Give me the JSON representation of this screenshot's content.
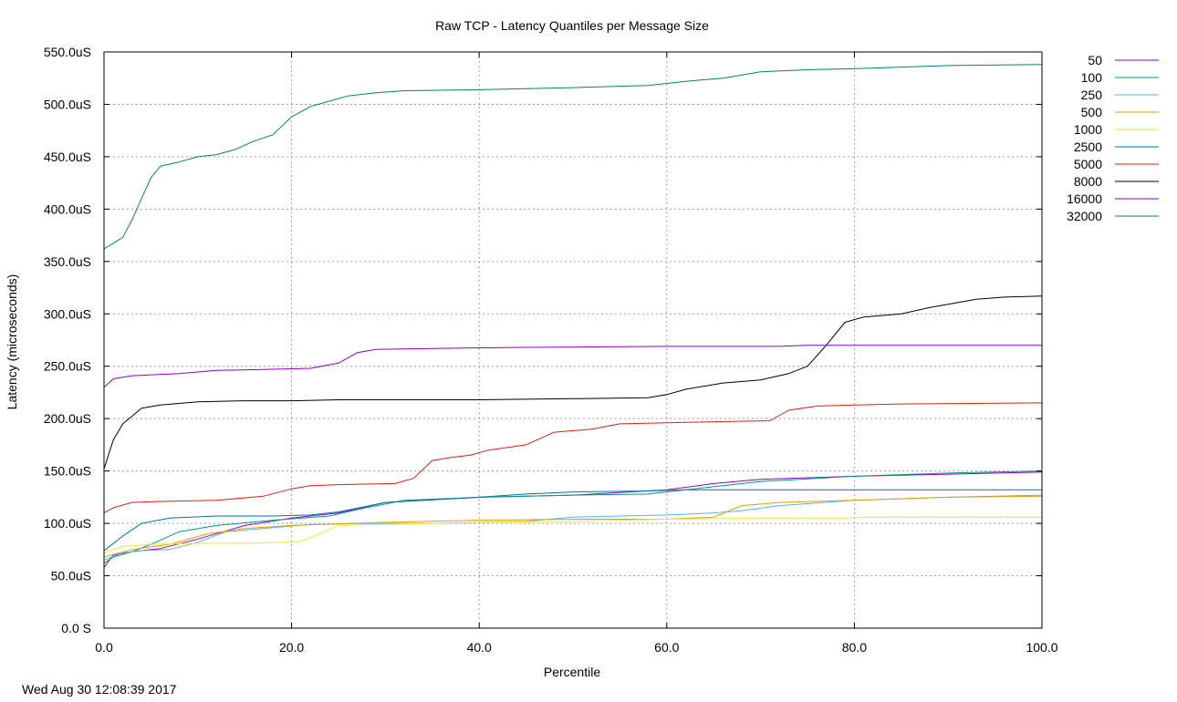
{
  "chart_data": {
    "type": "line",
    "title": "Raw TCP - Latency Quantiles per Message Size",
    "xlabel": "Percentile",
    "ylabel": "Latency (microseconds)",
    "xlim": [
      0,
      100
    ],
    "ylim": [
      0,
      550
    ],
    "x_ticks": [
      0,
      20,
      40,
      60,
      80,
      100
    ],
    "x_tick_labels": [
      "0.0",
      "20.0",
      "40.0",
      "60.0",
      "80.0",
      "100.0"
    ],
    "y_ticks": [
      0,
      50,
      100,
      150,
      200,
      250,
      300,
      350,
      400,
      450,
      500,
      550
    ],
    "y_tick_labels": [
      "0.0 S",
      "50.0uS",
      "100.0uS",
      "150.0uS",
      "200.0uS",
      "250.0uS",
      "300.0uS",
      "350.0uS",
      "400.0uS",
      "450.0uS",
      "500.0uS",
      "550.0uS"
    ],
    "grid": true,
    "legend_position": "right",
    "series": [
      {
        "name": "50",
        "color": "#9400d3",
        "points": [
          [
            0,
            58
          ],
          [
            1,
            70
          ],
          [
            3,
            73
          ],
          [
            6,
            76
          ],
          [
            10,
            85
          ],
          [
            15,
            98
          ],
          [
            20,
            105
          ],
          [
            25,
            110
          ],
          [
            30,
            120
          ],
          [
            40,
            125
          ],
          [
            50,
            127
          ],
          [
            60,
            132
          ],
          [
            65,
            138
          ],
          [
            70,
            142
          ],
          [
            80,
            145
          ],
          [
            90,
            147
          ],
          [
            100,
            149
          ]
        ]
      },
      {
        "name": "100",
        "color": "#009e73",
        "points": [
          [
            0,
            62
          ],
          [
            1,
            68
          ],
          [
            3,
            73
          ],
          [
            5,
            80
          ],
          [
            8,
            92
          ],
          [
            12,
            98
          ],
          [
            18,
            103
          ],
          [
            24,
            107
          ],
          [
            28,
            115
          ],
          [
            32,
            122
          ],
          [
            40,
            125
          ],
          [
            50,
            127
          ],
          [
            58,
            128
          ],
          [
            62,
            132
          ],
          [
            70,
            140
          ],
          [
            80,
            145
          ],
          [
            90,
            148
          ],
          [
            100,
            150
          ]
        ]
      },
      {
        "name": "250",
        "color": "#56b4e9",
        "points": [
          [
            0,
            65
          ],
          [
            2,
            72
          ],
          [
            4,
            74
          ],
          [
            7,
            75
          ],
          [
            10,
            82
          ],
          [
            13,
            92
          ],
          [
            18,
            96
          ],
          [
            22,
            99
          ],
          [
            28,
            100
          ],
          [
            35,
            100
          ],
          [
            45,
            102
          ],
          [
            50,
            106
          ],
          [
            60,
            108
          ],
          [
            65,
            110
          ],
          [
            68,
            112
          ],
          [
            72,
            117
          ],
          [
            80,
            122
          ],
          [
            90,
            125
          ],
          [
            100,
            127
          ]
        ]
      },
      {
        "name": "500",
        "color": "#e69f00",
        "points": [
          [
            0,
            68
          ],
          [
            3,
            75
          ],
          [
            7,
            80
          ],
          [
            11,
            90
          ],
          [
            15,
            95
          ],
          [
            20,
            98
          ],
          [
            30,
            101
          ],
          [
            40,
            103
          ],
          [
            50,
            104
          ],
          [
            60,
            104
          ],
          [
            65,
            106
          ],
          [
            68,
            117
          ],
          [
            72,
            120
          ],
          [
            80,
            122
          ],
          [
            90,
            125
          ],
          [
            100,
            126
          ]
        ]
      },
      {
        "name": "1000",
        "color": "#f0e442",
        "points": [
          [
            0,
            72
          ],
          [
            2,
            78
          ],
          [
            5,
            80
          ],
          [
            10,
            81
          ],
          [
            15,
            81
          ],
          [
            19,
            82
          ],
          [
            21,
            83
          ],
          [
            23,
            90
          ],
          [
            25,
            98
          ],
          [
            30,
            99
          ],
          [
            40,
            101
          ],
          [
            50,
            102
          ],
          [
            60,
            104
          ],
          [
            70,
            105
          ],
          [
            79,
            105
          ],
          [
            81,
            106
          ],
          [
            100,
            106
          ]
        ]
      },
      {
        "name": "2500",
        "color": "#0072b2",
        "points": [
          [
            0,
            74
          ],
          [
            2,
            88
          ],
          [
            4,
            100
          ],
          [
            7,
            105
          ],
          [
            12,
            107
          ],
          [
            18,
            107
          ],
          [
            22,
            108
          ],
          [
            25,
            111
          ],
          [
            30,
            120
          ],
          [
            40,
            125
          ],
          [
            45,
            128
          ],
          [
            50,
            130
          ],
          [
            58,
            131
          ],
          [
            62,
            132
          ],
          [
            70,
            132
          ],
          [
            80,
            132
          ],
          [
            100,
            132
          ]
        ]
      },
      {
        "name": "5000",
        "color": "#e51e10",
        "points": [
          [
            0,
            110
          ],
          [
            1,
            115
          ],
          [
            3,
            120
          ],
          [
            6,
            121
          ],
          [
            12,
            122
          ],
          [
            17,
            126
          ],
          [
            20,
            133
          ],
          [
            22,
            136
          ],
          [
            25,
            137
          ],
          [
            31,
            138
          ],
          [
            33,
            143
          ],
          [
            35,
            160
          ],
          [
            37,
            163
          ],
          [
            39,
            165
          ],
          [
            41,
            170
          ],
          [
            45,
            175
          ],
          [
            48,
            187
          ],
          [
            52,
            190
          ],
          [
            55,
            195
          ],
          [
            60,
            196
          ],
          [
            65,
            197
          ],
          [
            71,
            198
          ],
          [
            73,
            208
          ],
          [
            76,
            212
          ],
          [
            80,
            213
          ],
          [
            85,
            214
          ],
          [
            100,
            215
          ]
        ]
      },
      {
        "name": "8000",
        "color": "#000000",
        "points": [
          [
            0,
            152
          ],
          [
            1,
            180
          ],
          [
            2,
            195
          ],
          [
            4,
            210
          ],
          [
            6,
            213
          ],
          [
            10,
            216
          ],
          [
            15,
            217
          ],
          [
            20,
            217
          ],
          [
            25,
            218
          ],
          [
            30,
            218
          ],
          [
            40,
            218
          ],
          [
            50,
            219
          ],
          [
            58,
            220
          ],
          [
            60,
            223
          ],
          [
            62,
            228
          ],
          [
            66,
            234
          ],
          [
            70,
            237
          ],
          [
            73,
            243
          ],
          [
            75,
            250
          ],
          [
            77,
            270
          ],
          [
            79,
            292
          ],
          [
            81,
            297
          ],
          [
            85,
            300
          ],
          [
            88,
            306
          ],
          [
            93,
            314
          ],
          [
            96,
            316
          ],
          [
            100,
            317
          ]
        ]
      },
      {
        "name": "16000",
        "color": "#8b00c9",
        "points": [
          [
            0,
            230
          ],
          [
            1,
            238
          ],
          [
            3,
            241
          ],
          [
            8,
            243
          ],
          [
            12,
            246
          ],
          [
            17,
            247
          ],
          [
            22,
            248
          ],
          [
            25,
            253
          ],
          [
            27,
            263
          ],
          [
            29,
            266
          ],
          [
            35,
            267
          ],
          [
            45,
            268
          ],
          [
            60,
            269
          ],
          [
            72,
            269
          ],
          [
            75,
            270
          ],
          [
            100,
            270
          ]
        ]
      },
      {
        "name": "32000",
        "color": "#00846a",
        "points": [
          [
            0,
            362
          ],
          [
            2,
            373
          ],
          [
            3,
            390
          ],
          [
            4,
            410
          ],
          [
            5,
            430
          ],
          [
            6,
            441
          ],
          [
            8,
            445
          ],
          [
            10,
            450
          ],
          [
            12,
            452
          ],
          [
            14,
            457
          ],
          [
            16,
            465
          ],
          [
            18,
            471
          ],
          [
            20,
            488
          ],
          [
            22,
            498
          ],
          [
            24,
            503
          ],
          [
            26,
            508
          ],
          [
            29,
            511
          ],
          [
            32,
            513
          ],
          [
            40,
            514
          ],
          [
            50,
            516
          ],
          [
            58,
            518
          ],
          [
            62,
            522
          ],
          [
            66,
            525
          ],
          [
            70,
            531
          ],
          [
            75,
            533
          ],
          [
            80,
            534
          ],
          [
            90,
            537
          ],
          [
            100,
            538
          ]
        ]
      }
    ]
  },
  "footer": {
    "timestamp": "Wed Aug 30 12:08:39 2017"
  }
}
